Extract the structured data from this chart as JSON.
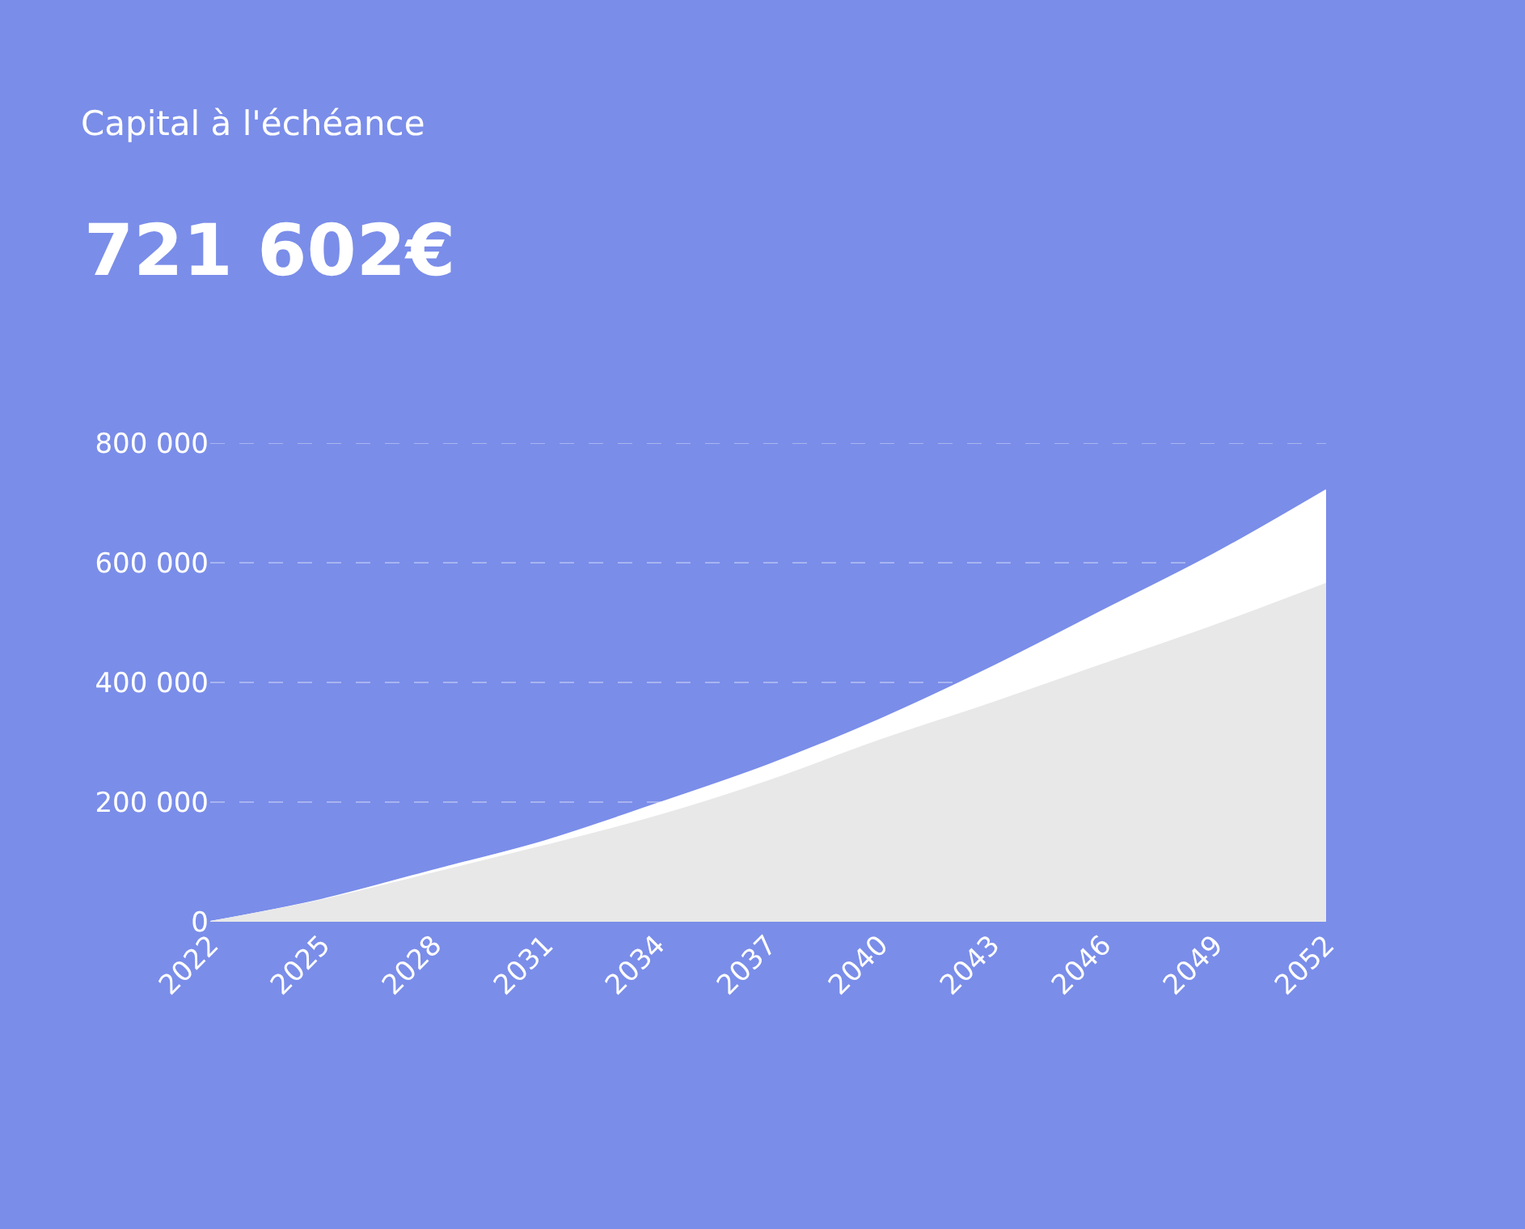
{
  "chart_data": {
    "type": "area",
    "title": "Capital à l'échéance",
    "subtitle": "721 602€",
    "x": [
      2022,
      2025,
      2028,
      2031,
      2034,
      2037,
      2040,
      2043,
      2046,
      2049,
      2052
    ],
    "series": [
      {
        "color": "#ffffff",
        "values": [
          0,
          37000,
          86000,
          135000,
          197000,
          262000,
          338000,
          425000,
          520000,
          615000,
          721602
        ]
      },
      {
        "color": "#e8e8e8",
        "values": [
          0,
          36000,
          81000,
          127000,
          176000,
          235000,
          303000,
          365000,
          430000,
          495000,
          565000
        ]
      }
    ],
    "xlim": [
      2022,
      2052
    ],
    "xticks": [
      2022,
      2025,
      2028,
      2031,
      2034,
      2037,
      2040,
      2043,
      2046,
      2049,
      2052
    ],
    "ylim": [
      0,
      800000
    ],
    "yticks": [
      0,
      {
        "value": 200000,
        "label": "200 000"
      },
      {
        "value": 400000,
        "label": "400 000"
      },
      {
        "value": 600000,
        "label": "600 000"
      },
      {
        "value": 800000,
        "label": "800 000"
      }
    ],
    "grid": "y",
    "line_style": "dashed"
  }
}
